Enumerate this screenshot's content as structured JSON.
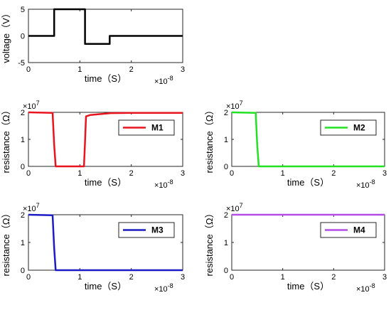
{
  "chart_data": [
    {
      "id": "voltage",
      "type": "line",
      "xlabel": "time（S）",
      "ylabel": "voltage（V）",
      "x_exponent": "×10",
      "x_exponent_power": "-8",
      "y_exponent": "",
      "y_exponent_power": "",
      "xlim": [
        0,
        3
      ],
      "ylim": [
        -5,
        5
      ],
      "xticks": [
        0,
        1,
        2,
        3
      ],
      "xtick_labels": [
        "0",
        "1",
        "2",
        "3"
      ],
      "yticks": [
        -5,
        0,
        5
      ],
      "ytick_labels": [
        "-5",
        "0",
        "5"
      ],
      "legend": null,
      "series": [
        {
          "color": "#000000",
          "x": [
            0,
            0.5,
            0.5,
            1.1,
            1.1,
            1.58,
            1.58,
            3.0
          ],
          "y": [
            0,
            0,
            5,
            5,
            -1.5,
            -1.5,
            0,
            0
          ]
        }
      ]
    },
    {
      "id": "M1",
      "type": "line",
      "xlabel": "time（S）",
      "ylabel": "resistance（Ω）",
      "x_exponent": "×10",
      "x_exponent_power": "-8",
      "y_exponent": "×10",
      "y_exponent_power": "7",
      "xlim": [
        0,
        3
      ],
      "ylim": [
        0,
        2
      ],
      "xticks": [
        0,
        1,
        2,
        3
      ],
      "xtick_labels": [
        "0",
        "1",
        "2",
        "3"
      ],
      "yticks": [
        0,
        1,
        2
      ],
      "ytick_labels": [
        "0",
        "1",
        "2"
      ],
      "legend": "top-right",
      "series": [
        {
          "name": "M1",
          "color": "#e8141e",
          "x": [
            0,
            0.47,
            0.5,
            0.53,
            1.08,
            1.1,
            1.12,
            1.2,
            1.35,
            1.6,
            2.0,
            3.0
          ],
          "y": [
            2.0,
            1.98,
            0.8,
            0.0,
            0.0,
            0.9,
            1.85,
            1.9,
            1.93,
            1.97,
            1.98,
            1.98
          ]
        }
      ]
    },
    {
      "id": "M2",
      "type": "line",
      "xlabel": "time（S）",
      "ylabel": "resistance（Ω）",
      "x_exponent": "×10",
      "x_exponent_power": "-8",
      "y_exponent": "×10",
      "y_exponent_power": "7",
      "xlim": [
        0,
        3
      ],
      "ylim": [
        0,
        2
      ],
      "xticks": [
        0,
        1,
        2,
        3
      ],
      "xtick_labels": [
        "0",
        "1",
        "2",
        "3"
      ],
      "yticks": [
        0,
        1,
        2
      ],
      "ytick_labels": [
        "0",
        "1",
        "2"
      ],
      "legend": "top-right",
      "series": [
        {
          "name": "M2",
          "color": "#22e022",
          "x": [
            0,
            0.47,
            0.5,
            0.53,
            3.0
          ],
          "y": [
            2.0,
            1.98,
            0.8,
            0.0,
            0.0
          ]
        }
      ]
    },
    {
      "id": "M3",
      "type": "line",
      "xlabel": "time（S）",
      "ylabel": "resistance（Ω）",
      "x_exponent": "×10",
      "x_exponent_power": "-8",
      "y_exponent": "×10",
      "y_exponent_power": "7",
      "xlim": [
        0,
        3
      ],
      "ylim": [
        0,
        2
      ],
      "xticks": [
        0,
        1,
        2,
        3
      ],
      "xtick_labels": [
        "0",
        "1",
        "2",
        "3"
      ],
      "yticks": [
        0,
        1,
        2
      ],
      "ytick_labels": [
        "0",
        "1",
        "2"
      ],
      "legend": "top-right",
      "series": [
        {
          "name": "M3",
          "color": "#1c1cc4",
          "x": [
            0,
            0.47,
            0.5,
            0.53,
            3.0
          ],
          "y": [
            2.0,
            1.98,
            0.8,
            0.0,
            0.0
          ]
        }
      ]
    },
    {
      "id": "M4",
      "type": "line",
      "xlabel": "time（S）",
      "ylabel": "resistance（Ω）",
      "x_exponent": "×10",
      "x_exponent_power": "-8",
      "y_exponent": "×10",
      "y_exponent_power": "7",
      "xlim": [
        0,
        3
      ],
      "ylim": [
        0,
        2
      ],
      "xticks": [
        0,
        1,
        2,
        3
      ],
      "xtick_labels": [
        "0",
        "1",
        "2",
        "3"
      ],
      "yticks": [
        0,
        1,
        2
      ],
      "ytick_labels": [
        "0",
        "1",
        "2"
      ],
      "legend": "top-right",
      "series": [
        {
          "name": "M4",
          "color": "#b44ce6",
          "x": [
            0,
            3.0
          ],
          "y": [
            2.0,
            2.0
          ]
        }
      ]
    }
  ]
}
